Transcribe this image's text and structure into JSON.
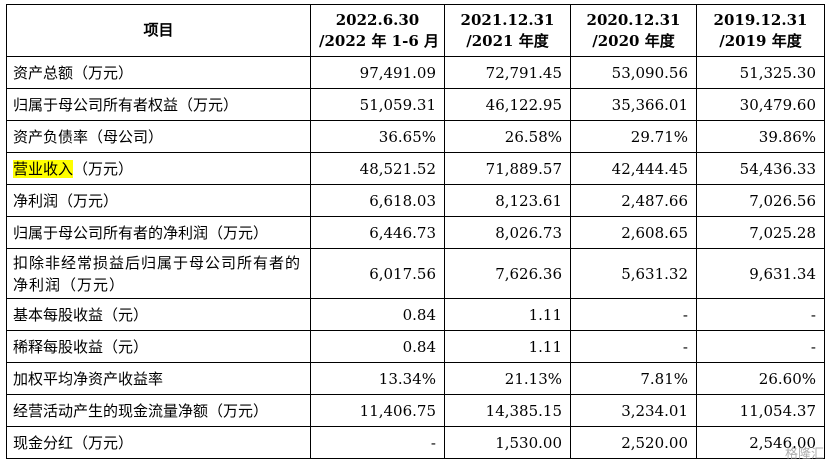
{
  "header": {
    "item": "项目",
    "periods": [
      [
        "2022.6.30",
        "/2022 年 1-6 月"
      ],
      [
        "2021.12.31",
        "/2021 年度"
      ],
      [
        "2020.12.31",
        "/2020 年度"
      ],
      [
        "2019.12.31",
        "/2019 年度"
      ]
    ]
  },
  "rows": [
    {
      "label_hl": "",
      "label": "资产总额（万元）",
      "values": [
        "97,491.09",
        "72,791.45",
        "53,090.56",
        "51,325.30"
      ]
    },
    {
      "label_hl": "",
      "label": "归属于母公司所有者权益（万元）",
      "values": [
        "51,059.31",
        "46,122.95",
        "35,366.01",
        "30,479.60"
      ]
    },
    {
      "label_hl": "",
      "label": "资产负债率（母公司）",
      "values": [
        "36.65%",
        "26.58%",
        "29.71%",
        "39.86%"
      ]
    },
    {
      "label_hl": "营业收入",
      "label": "（万元）",
      "values": [
        "48,521.52",
        "71,889.57",
        "42,444.45",
        "54,436.33"
      ]
    },
    {
      "label_hl": "",
      "label": "净利润（万元）",
      "values": [
        "6,618.03",
        "8,123.61",
        "2,487.66",
        "7,026.56"
      ]
    },
    {
      "label_hl": "",
      "label": "归属于母公司所有者的净利润（万元）",
      "values": [
        "6,446.73",
        "8,026.73",
        "2,608.65",
        "7,025.28"
      ]
    },
    {
      "label_hl": "",
      "label": "扣除非经常损益后归属于母公司所有者的净利润（万元）",
      "values": [
        "6,017.56",
        "7,626.36",
        "5,631.32",
        "9,631.34"
      ]
    },
    {
      "label_hl": "",
      "label": "基本每股收益（元）",
      "values": [
        "0.84",
        "1.11",
        "-",
        "-"
      ]
    },
    {
      "label_hl": "",
      "label": "稀释每股收益（元）",
      "values": [
        "0.84",
        "1.11",
        "-",
        "-"
      ]
    },
    {
      "label_hl": "",
      "label": "加权平均净资产收益率",
      "values": [
        "13.34%",
        "21.13%",
        "7.81%",
        "26.60%"
      ]
    },
    {
      "label_hl": "",
      "label": "经营活动产生的现金流量净额（万元）",
      "values": [
        "11,406.75",
        "14,385.15",
        "3,234.01",
        "11,054.37"
      ]
    },
    {
      "label_hl": "",
      "label": "现金分红（万元）",
      "values": [
        "-",
        "1,530.00",
        "2,520.00",
        "2,546.00"
      ]
    }
  ],
  "watermark": "格隆汇"
}
